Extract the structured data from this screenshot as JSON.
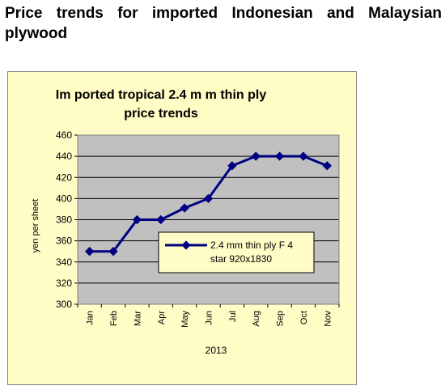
{
  "page": {
    "heading": "Price trends for imported Indonesian and Malaysian plywood"
  },
  "chart_data": {
    "type": "line",
    "title_line1": "Im ported tropical 2.4 m m  thin ply",
    "title_line2": "price trends",
    "xlabel": "2013",
    "ylabel": "yen per sheet",
    "categories": [
      "Jan",
      "Feb",
      "Mar",
      "Apr",
      "May",
      "Jun",
      "Jul",
      "Aug",
      "Sep",
      "Oct",
      "Nov"
    ],
    "ylim": [
      300,
      460
    ],
    "yticks": [
      "300",
      "320",
      "340",
      "360",
      "380",
      "400",
      "420",
      "440",
      "460"
    ],
    "series": [
      {
        "name_line1": "2.4 mm thin ply F 4",
        "name_line2": "star 920x1830",
        "values": [
          350,
          350,
          380,
          380,
          391,
          400,
          431,
          440,
          440,
          440,
          431
        ]
      }
    ],
    "grid": true,
    "legend_position": "inside-right",
    "colors": {
      "line": "#000080",
      "plot_background": "#c0c0c0",
      "chart_background": "#fffcc6"
    }
  }
}
